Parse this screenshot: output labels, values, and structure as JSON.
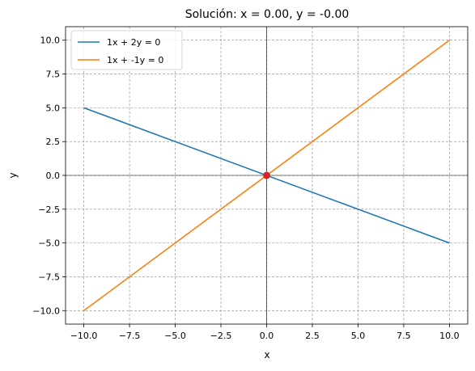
{
  "chart_data": {
    "type": "line",
    "title": "Solución: x = 0.00, y = -0.00",
    "xlabel": "x",
    "ylabel": "y",
    "xlim": [
      -11,
      11
    ],
    "ylim": [
      -11,
      11
    ],
    "xticks": [
      -10.0,
      -7.5,
      -5.0,
      -2.5,
      0.0,
      2.5,
      5.0,
      7.5,
      10.0
    ],
    "yticks": [
      -10.0,
      -7.5,
      -5.0,
      -2.5,
      0.0,
      2.5,
      5.0,
      7.5,
      10.0
    ],
    "xtick_labels": [
      "−10.0",
      "−7.5",
      "−5.0",
      "−2.5",
      "0.0",
      "2.5",
      "5.0",
      "7.5",
      "10.0"
    ],
    "ytick_labels": [
      "−10.0",
      "−7.5",
      "−5.0",
      "−2.5",
      "0.0",
      "2.5",
      "5.0",
      "7.5",
      "10.0"
    ],
    "grid": true,
    "grid_style": "dashed",
    "legend_position": "top-left",
    "series": [
      {
        "name": "1x + 2y = 0",
        "color": "#1f77b4",
        "x": [
          -10,
          10
        ],
        "y": [
          5,
          -5
        ]
      },
      {
        "name": "1x + -1y = 0",
        "color": "#ff7f0e",
        "x": [
          -10,
          10
        ],
        "y": [
          -10,
          10
        ]
      }
    ],
    "solution_point": {
      "x": 0.0,
      "y": 0.0,
      "color": "#d62728"
    },
    "reference_lines": {
      "x": 0,
      "y": 0,
      "color": "#000000"
    }
  }
}
